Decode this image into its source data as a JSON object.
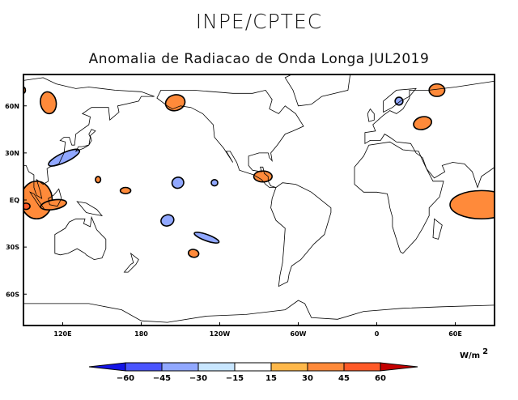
{
  "header": {
    "title": "INPE/CPTEC",
    "subtitle": "Anomalia de Radiacao de Onda Longa JUL2019"
  },
  "chart_data": {
    "type": "map",
    "title": "Anomalia de Radiacao de Onda Longa JUL2019",
    "lon_range": [
      90,
      450
    ],
    "lat_range": [
      -80,
      80
    ],
    "x_ticks": [
      {
        "lon": 120,
        "label": "120E"
      },
      {
        "lon": 180,
        "label": "180"
      },
      {
        "lon": 240,
        "label": "120W"
      },
      {
        "lon": 300,
        "label": "60W"
      },
      {
        "lon": 360,
        "label": "0"
      },
      {
        "lon": 420,
        "label": "60E"
      }
    ],
    "y_ticks": [
      {
        "lat": 60,
        "label": "60N"
      },
      {
        "lat": 30,
        "label": "30N"
      },
      {
        "lat": 0,
        "label": "EQ"
      },
      {
        "lat": -30,
        "label": "30S"
      },
      {
        "lat": -60,
        "label": "60S"
      }
    ],
    "units": "W/m",
    "units_exp": "2",
    "colorbar": {
      "levels": [
        "-60",
        "-45",
        "-30",
        "-15",
        "15",
        "30",
        "45",
        "60"
      ],
      "colors": [
        "#1414e6",
        "#4a55ff",
        "#91a8ff",
        "#c8e6ff",
        "#ffffff",
        "#ffb84a",
        "#ff8a3a",
        "#ff5a28",
        "#c40000"
      ]
    },
    "anomalies": [
      {
        "lon": 109,
        "lat": 62,
        "rlon": 6,
        "rlat": 7,
        "rot": -10,
        "class": 30
      },
      {
        "lon": 206,
        "lat": 62,
        "rlon": 7.5,
        "rlat": 5,
        "rot": -15,
        "class": 30
      },
      {
        "lon": 121,
        "lat": 27,
        "rlon": 13,
        "rlat": 3,
        "rot": -25,
        "class": -30
      },
      {
        "lon": 147,
        "lat": 13,
        "rlon": 2,
        "rlat": 2,
        "rot": 0,
        "class": 30
      },
      {
        "lon": 168,
        "lat": 6,
        "rlon": 4,
        "rlat": 2,
        "rot": 0,
        "class": 30
      },
      {
        "lon": 208,
        "lat": 11,
        "rlon": 4.5,
        "rlat": 3.5,
        "rot": -20,
        "class": -30
      },
      {
        "lon": 236,
        "lat": 11,
        "rlon": 2.5,
        "rlat": 2,
        "rot": 0,
        "class": -30
      },
      {
        "lon": 200,
        "lat": -13,
        "rlon": 5,
        "rlat": 3.5,
        "rot": -20,
        "class": -30
      },
      {
        "lon": 230,
        "lat": -24,
        "rlon": 10,
        "rlat": 2,
        "rot": 20,
        "class": -30
      },
      {
        "lon": 220,
        "lat": -34,
        "rlon": 4,
        "rlat": 2.5,
        "rot": 10,
        "class": 30
      },
      {
        "lon": 100,
        "lat": 0,
        "rlon": 12,
        "rlat": 12,
        "rot": 0,
        "class": 30
      },
      {
        "lon": 113,
        "lat": -3,
        "rlon": 10,
        "rlat": 3,
        "rot": -10,
        "class": 30
      },
      {
        "lon": 92,
        "lat": -4,
        "rlon": 3,
        "rlat": 2,
        "rot": 0,
        "class": 45
      },
      {
        "lon": 273,
        "lat": 15,
        "rlon": 7,
        "rlat": 3.5,
        "rot": 0,
        "class": 30
      },
      {
        "lon": 377,
        "lat": 63,
        "rlon": 3,
        "rlat": 2.5,
        "rot": 0,
        "class": -30
      },
      {
        "lon": 395,
        "lat": 49,
        "rlon": 7,
        "rlat": 4,
        "rot": -15,
        "class": 30
      },
      {
        "lon": 406,
        "lat": 70,
        "rlon": 6,
        "rlat": 4,
        "rot": 0,
        "class": 30
      },
      {
        "lon": 440,
        "lat": -3,
        "rlon": 24,
        "rlat": 9,
        "rot": 0,
        "class": 30
      },
      {
        "lon": 90,
        "lat": 70,
        "rlon": 1.5,
        "rlat": 2,
        "rot": 0,
        "class": 30
      }
    ]
  }
}
